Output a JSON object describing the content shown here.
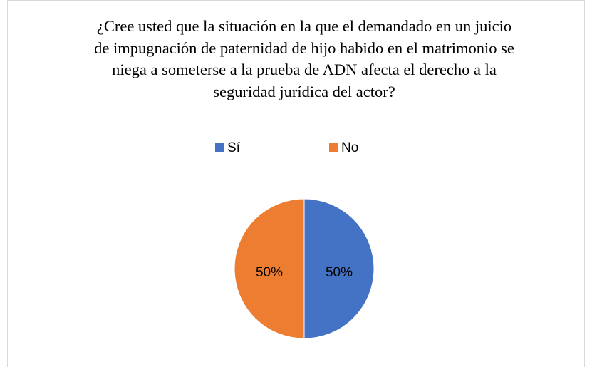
{
  "chart_data": {
    "type": "pie",
    "title": "¿Cree usted que la situación en la que el demandado en un juicio de impugnación de paternidad de hijo habido en el matrimonio se niega a someterse a la prueba de ADN afecta el derecho a la seguridad jurídica del actor?",
    "categories": [
      "Sí",
      "No"
    ],
    "values": [
      50,
      50
    ],
    "value_labels": [
      "50%",
      "50%"
    ],
    "colors": [
      "#4472c4",
      "#ed7d31"
    ],
    "legend": "top"
  }
}
